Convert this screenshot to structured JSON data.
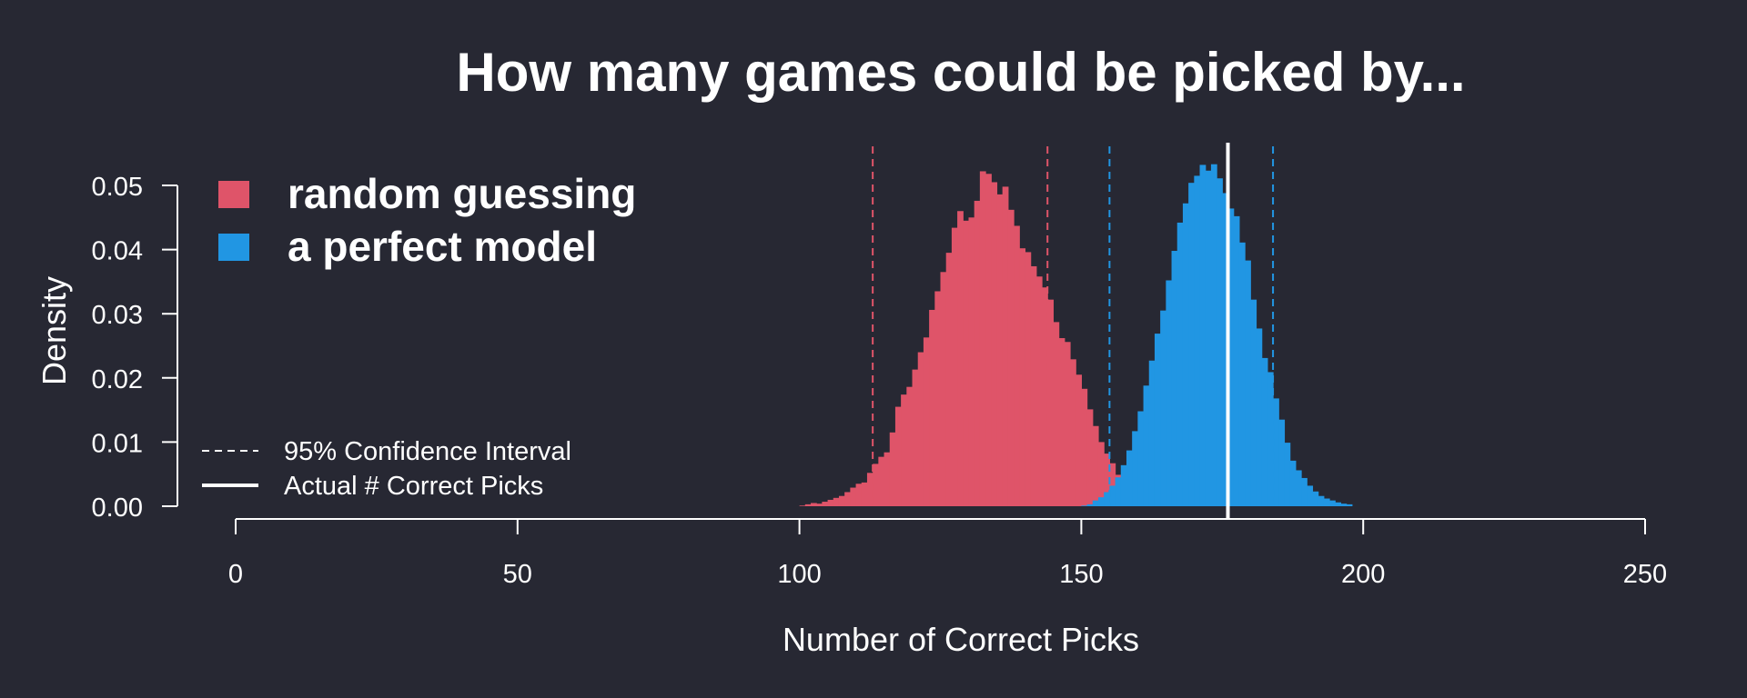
{
  "chart_data": {
    "type": "histogram",
    "title": "How many games could be picked by...",
    "xlabel": "Number of Correct Picks",
    "ylabel": "Density",
    "xlim": [
      0,
      250
    ],
    "ylim": [
      0,
      0.05
    ],
    "x_ticks": [
      "0",
      "50",
      "100",
      "150",
      "200",
      "250"
    ],
    "y_ticks": [
      "0.00",
      "0.01",
      "0.02",
      "0.03",
      "0.04",
      "0.05"
    ],
    "bin_width": 1,
    "series": [
      {
        "name": "random guessing",
        "color": "#df5469",
        "bins_start": 100,
        "density": [
          0.0001,
          0.0003,
          0.0005,
          0.0004,
          0.0007,
          0.001,
          0.0013,
          0.0016,
          0.0022,
          0.0029,
          0.0035,
          0.0037,
          0.0052,
          0.0066,
          0.0077,
          0.0084,
          0.0115,
          0.0155,
          0.0174,
          0.0186,
          0.0213,
          0.024,
          0.0263,
          0.0306,
          0.0335,
          0.0365,
          0.0395,
          0.0434,
          0.046,
          0.0445,
          0.045,
          0.0476,
          0.0522,
          0.0518,
          0.0505,
          0.0486,
          0.0498,
          0.0462,
          0.0437,
          0.0402,
          0.0396,
          0.0374,
          0.0358,
          0.0341,
          0.0322,
          0.0287,
          0.0262,
          0.0256,
          0.0229,
          0.0205,
          0.0183,
          0.0151,
          0.0125,
          0.01,
          0.0082,
          0.0067,
          0.0049,
          0.0044,
          0.0034,
          0.003,
          0.0023,
          0.0017,
          0.0013,
          0.0009,
          0.0008,
          0.0006,
          0.0004,
          0.0003,
          0.0002,
          0.0002,
          0.0001,
          0.0001
        ]
      },
      {
        "name": "a perfect model",
        "color": "#2196e3",
        "bins_start": 150,
        "density": [
          0.0001,
          0.0003,
          0.0009,
          0.0014,
          0.0022,
          0.0032,
          0.0045,
          0.0064,
          0.0087,
          0.0117,
          0.0148,
          0.0188,
          0.0227,
          0.0269,
          0.0305,
          0.0352,
          0.0398,
          0.0442,
          0.0472,
          0.0504,
          0.0515,
          0.0532,
          0.0523,
          0.0533,
          0.0511,
          0.0488,
          0.0464,
          0.0452,
          0.0411,
          0.0383,
          0.0322,
          0.0277,
          0.0231,
          0.0209,
          0.0168,
          0.0135,
          0.0099,
          0.0071,
          0.0056,
          0.0044,
          0.0032,
          0.0023,
          0.0016,
          0.0012,
          0.0009,
          0.0006,
          0.0004,
          0.0003
        ]
      }
    ],
    "confidence_intervals": [
      {
        "series": "random guessing",
        "lower": 113,
        "upper": 144
      },
      {
        "series": "a perfect model",
        "lower": 155,
        "upper": 184
      }
    ],
    "actual_correct_picks": 176,
    "legend": {
      "position": "top-left",
      "entries": [
        {
          "label": "random guessing",
          "color": "#df5469"
        },
        {
          "label": "a perfect model",
          "color": "#2196e3"
        }
      ]
    },
    "line_legend": {
      "position": "bottom-left",
      "entries": [
        {
          "label": "95% Confidence Interval",
          "style": "dashed"
        },
        {
          "label": "Actual # Correct Picks",
          "style": "solid"
        }
      ]
    },
    "grid": false
  }
}
